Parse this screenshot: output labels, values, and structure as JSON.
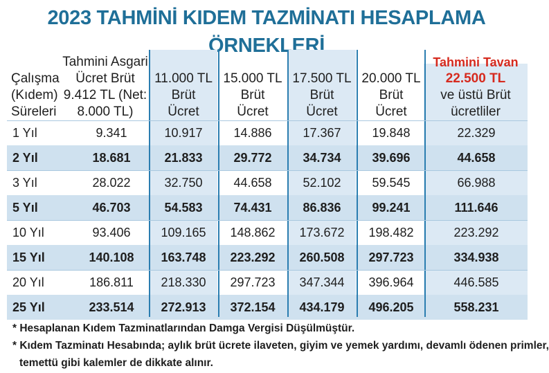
{
  "title": "2023 TAHMİNİ KIDEM TAZMİNATI HESAPLAMA ÖRNEKLERİ",
  "header": {
    "col1": [
      "Çalışma",
      "(Kıdem)",
      "Süreleri"
    ],
    "col2": [
      "Tahmini Asgari",
      "Ücret Brüt",
      "9.412 TL (Net:",
      "8.000 TL)"
    ],
    "col3": [
      "11.000 TL",
      "Brüt",
      "Ücret"
    ],
    "col4": [
      "15.000 TL",
      "Brüt",
      "Ücret"
    ],
    "col5": [
      "17.500 TL",
      "Brüt",
      "Ücret"
    ],
    "col6": [
      "20.000 TL",
      "Brüt",
      "Ücret"
    ],
    "col7_top": "Tahmini Tavan",
    "col7": [
      "22.500 TL",
      "ve üstü Brüt",
      "ücretliler"
    ]
  },
  "rows": [
    {
      "label": "1 Yıl",
      "values": [
        "9.341",
        "10.917",
        "14.886",
        "17.367",
        "19.848",
        "22.329"
      ]
    },
    {
      "label": "2 Yıl",
      "values": [
        "18.681",
        "21.833",
        "29.772",
        "34.734",
        "39.696",
        "44.658"
      ]
    },
    {
      "label": "3 Yıl",
      "values": [
        "28.022",
        "32.750",
        "44.658",
        "52.102",
        "59.545",
        "66.988"
      ]
    },
    {
      "label": "5 Yıl",
      "values": [
        "46.703",
        "54.583",
        "74.431",
        "86.836",
        "99.241",
        "111.646"
      ]
    },
    {
      "label": "10 Yıl",
      "values": [
        "93.406",
        "109.165",
        "148.862",
        "173.672",
        "198.482",
        "223.292"
      ]
    },
    {
      "label": "15 Yıl",
      "values": [
        "140.108",
        "163.748",
        "223.292",
        "260.508",
        "297.723",
        "334.938"
      ]
    },
    {
      "label": "20 Yıl",
      "values": [
        "186.811",
        "218.330",
        "297.723",
        "347.344",
        "396.964",
        "446.585"
      ]
    },
    {
      "label": "25 Yıl",
      "values": [
        "233.514",
        "272.913",
        "372.154",
        "434.179",
        "496.205",
        "558.231"
      ]
    }
  ],
  "notes": [
    "* Hesaplanan Kıdem Tazminatlarından Damga Vergisi Düşülmüştür.",
    "* Kıdem Tazminatı Hesabında; aylık brüt ücrete ilaveten, giyim ve yemek yardımı, devamlı ödenen primler,",
    "temettü gibi kalemler de dikkate alınır."
  ],
  "colors": {
    "title": "#1f6f98",
    "accent_red": "#d62a1e",
    "band": "#cfe1ef",
    "column_shade": "#dce9f4"
  }
}
